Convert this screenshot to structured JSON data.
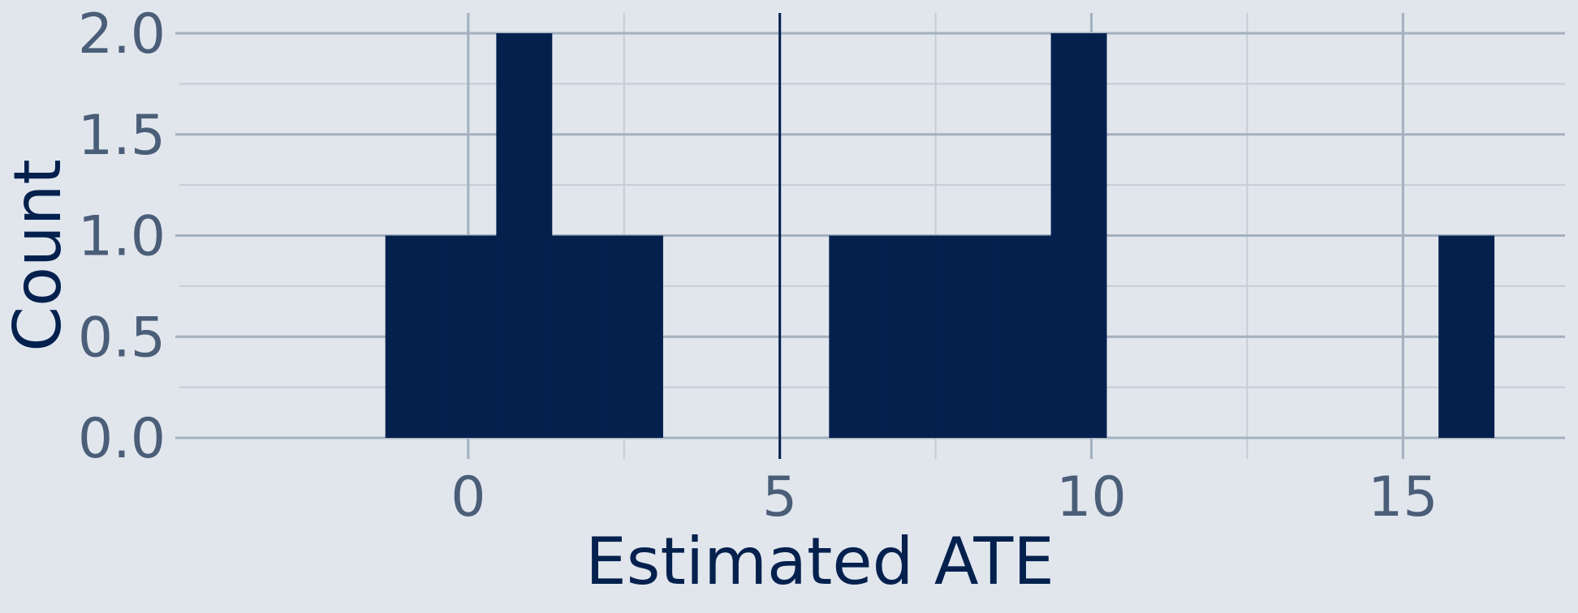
{
  "chart_data": {
    "type": "bar",
    "subtype": "histogram",
    "title": "",
    "xlabel": "Estimated ATE",
    "ylabel": "Count",
    "xlim": [
      -4.7,
      17.6
    ],
    "ylim": [
      0,
      2.0
    ],
    "x_ticks": [
      0,
      5,
      10,
      15
    ],
    "x_tick_labels": [
      "0",
      "5",
      "10",
      "15"
    ],
    "y_ticks": [
      0,
      0.5,
      1.0,
      1.5,
      2.0
    ],
    "y_tick_labels": [
      "0.0",
      "0.5",
      "1.0",
      "1.5",
      "2.0"
    ],
    "bins": [
      {
        "x0": -1.33,
        "x1": -0.44,
        "count": 1
      },
      {
        "x0": -0.44,
        "x1": 0.45,
        "count": 1
      },
      {
        "x0": 0.45,
        "x1": 1.34,
        "count": 2
      },
      {
        "x0": 1.34,
        "x1": 2.23,
        "count": 1
      },
      {
        "x0": 2.23,
        "x1": 3.12,
        "count": 1
      },
      {
        "x0": 5.79,
        "x1": 6.68,
        "count": 1
      },
      {
        "x0": 6.68,
        "x1": 7.57,
        "count": 1
      },
      {
        "x0": 7.57,
        "x1": 8.46,
        "count": 1
      },
      {
        "x0": 8.46,
        "x1": 9.35,
        "count": 1
      },
      {
        "x0": 9.35,
        "x1": 10.24,
        "count": 2
      },
      {
        "x0": 15.57,
        "x1": 16.46,
        "count": 1
      }
    ],
    "reference_line": {
      "x": 5
    },
    "grid": true,
    "colors": {
      "bar": "#04214e",
      "reference_line": "#04214e",
      "background": "#e1e6ed",
      "grid_major": "#a4b0be",
      "grid_minor": "#c5ccd5",
      "tick_label": "#4a5e78",
      "axis_title": "#04214e"
    }
  }
}
